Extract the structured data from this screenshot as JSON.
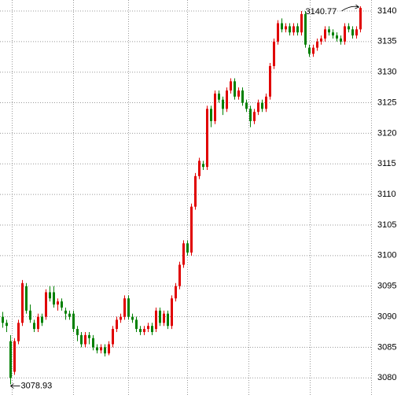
{
  "chart_data": {
    "type": "candlestick",
    "open": [
      3090,
      3089,
      3086,
      3081,
      3086,
      3089,
      3095,
      3091,
      3089,
      3088,
      3090,
      3090,
      3094,
      3094,
      3092,
      3092.5,
      3091,
      3090.5,
      3090.5,
      3088,
      3087,
      3085.5,
      3087,
      3086.5,
      3085,
      3084.5,
      3085,
      3084,
      3085.5,
      3088,
      3089.5,
      3090,
      3093,
      3090,
      3089.5,
      3088,
      3087.5,
      3088,
      3088.5,
      3088,
      3091,
      3089,
      3090.5,
      3088.5,
      3093,
      3095,
      3098.5,
      3102,
      3100.5,
      3108,
      3113,
      3115,
      3114.5,
      3124,
      3122,
      3126.5,
      3125.5,
      3124,
      3127,
      3128.5,
      3126,
      3127,
      3125,
      3124,
      3122,
      3123.5,
      3125,
      3124,
      3126,
      3131,
      3135,
      3138,
      3137,
      3137.5,
      3136.5,
      3137.5,
      3136.5,
      3139.5,
      3134,
      3133,
      3134,
      3135,
      3135.5,
      3137,
      3136.5,
      3136,
      3135.5,
      3135,
      3137.5,
      3137,
      3136,
      3137
    ],
    "high": [
      3090.8,
      3089.5,
      3087,
      3086.5,
      3089.5,
      3096,
      3095.5,
      3092,
      3089.5,
      3090.5,
      3090.5,
      3094.5,
      3095,
      3095,
      3093,
      3093,
      3091.5,
      3091,
      3091,
      3088.5,
      3087.5,
      3087.5,
      3087.5,
      3087,
      3085.5,
      3085.5,
      3085.5,
      3086,
      3088.5,
      3090,
      3090.5,
      3093.5,
      3093.5,
      3090.5,
      3090,
      3088.5,
      3088.5,
      3089,
      3089,
      3091.5,
      3091.5,
      3091,
      3091,
      3093.5,
      3095.5,
      3099,
      3102.5,
      3102.5,
      3108.5,
      3113.5,
      3116,
      3115.5,
      3124.5,
      3124.5,
      3127,
      3127,
      3126,
      3127.5,
      3129,
      3129,
      3127.5,
      3127.5,
      3125.5,
      3124.5,
      3124,
      3125.5,
      3125.5,
      3126.5,
      3131.5,
      3135.5,
      3138.5,
      3138.8,
      3138,
      3138,
      3138,
      3138,
      3140,
      3140,
      3134.5,
      3134.5,
      3135.5,
      3136,
      3137.5,
      3137.5,
      3137,
      3136.5,
      3136,
      3138,
      3138,
      3137.5,
      3137.5,
      3140.77
    ],
    "low": [
      3088.2,
      3087.5,
      3078.93,
      3080.5,
      3085.5,
      3088.5,
      3090.5,
      3089,
      3087.5,
      3087.5,
      3088.5,
      3089.5,
      3092.5,
      3091.5,
      3091,
      3091,
      3089.5,
      3089.5,
      3087.5,
      3086,
      3085,
      3085,
      3085.5,
      3084.5,
      3084,
      3084,
      3083.5,
      3083.7,
      3085,
      3087.5,
      3089,
      3089.5,
      3089.5,
      3089,
      3087.5,
      3087,
      3087,
      3087.5,
      3087,
      3087.5,
      3088.5,
      3088.5,
      3088,
      3088,
      3092.5,
      3094.5,
      3098,
      3100,
      3100,
      3107.5,
      3112.5,
      3114,
      3114,
      3121,
      3121.5,
      3125,
      3123,
      3123.5,
      3126.5,
      3125.5,
      3125.5,
      3124.5,
      3123.5,
      3121,
      3121.5,
      3123,
      3123.5,
      3123.5,
      3125.5,
      3130.5,
      3134.5,
      3136.5,
      3136.5,
      3136,
      3136,
      3136,
      3136,
      3134,
      3132.5,
      3132.5,
      3133.5,
      3134.5,
      3135,
      3136,
      3135.5,
      3135,
      3134.5,
      3134.5,
      3136.5,
      3135.5,
      3135.5,
      3136.5
    ],
    "close": [
      3089,
      3088.5,
      3080,
      3086,
      3089,
      3095.5,
      3091,
      3089.5,
      3088,
      3090,
      3089,
      3094,
      3093,
      3092,
      3092.5,
      3091.5,
      3090.5,
      3090,
      3088,
      3087,
      3085.5,
      3087,
      3086.5,
      3085,
      3084.5,
      3085,
      3084,
      3085.5,
      3088,
      3089.5,
      3090,
      3093,
      3090,
      3089.5,
      3088,
      3087.5,
      3088,
      3088.5,
      3087.5,
      3091,
      3089,
      3090.5,
      3088.5,
      3093,
      3095,
      3098.5,
      3102,
      3100.5,
      3108,
      3113,
      3115.5,
      3114.5,
      3124,
      3122,
      3126.5,
      3125.5,
      3124,
      3127,
      3128.5,
      3126,
      3127,
      3125,
      3124,
      3122,
      3123.5,
      3125,
      3124,
      3126,
      3131,
      3135,
      3138,
      3137,
      3137.5,
      3136.5,
      3137.5,
      3136.5,
      3139.5,
      3134.5,
      3133,
      3134,
      3135,
      3135.5,
      3137,
      3136.5,
      3136,
      3135.5,
      3135,
      3137.5,
      3137,
      3136,
      3137,
      3140.5
    ],
    "up_color": "#e00000",
    "down_color": "#008000",
    "max_label": "3140.77",
    "min_label": "3078.93",
    "ylim": [
      3077.2,
      3141.8
    ],
    "yticks": [
      3080,
      3085,
      3090,
      3095,
      3100,
      3105,
      3110,
      3115,
      3120,
      3125,
      3130,
      3135,
      3140
    ],
    "grid": true
  }
}
